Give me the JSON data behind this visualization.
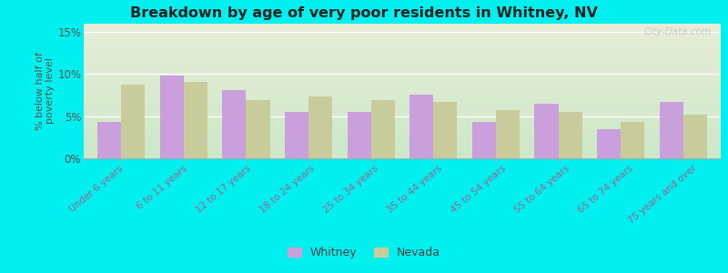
{
  "title": "Breakdown by age of very poor residents in Whitney, NV",
  "ylabel": "% below half of\npoverty level",
  "categories": [
    "Under 6 years",
    "6 to 11 years",
    "12 to 17 years",
    "18 to 24 years",
    "25 to 34 years",
    "35 to 44 years",
    "45 to 54 years",
    "55 to 64 years",
    "65 to 74 years",
    "75 years and over"
  ],
  "whitney_values": [
    4.3,
    9.8,
    8.1,
    5.5,
    5.5,
    7.5,
    4.3,
    6.5,
    3.4,
    6.7
  ],
  "nevada_values": [
    8.7,
    9.0,
    6.9,
    7.3,
    6.9,
    6.7,
    5.7,
    5.5,
    4.3,
    5.2
  ],
  "whitney_color": "#c9a0dc",
  "nevada_color": "#c8cc9a",
  "bg_outer": "#00efef",
  "bg_plot_top": "#e8edd8",
  "bg_plot_bottom": "#cce8c8",
  "ylim": [
    0,
    16
  ],
  "yticks": [
    0,
    5,
    10,
    15
  ],
  "ytick_labels": [
    "0%",
    "5%",
    "10%",
    "15%"
  ],
  "watermark": "City-Data.com",
  "legend_labels": [
    "Whitney",
    "Nevada"
  ],
  "bar_width": 0.38,
  "tick_label_color": "#996699",
  "tick_label_fontsize": 7.5
}
